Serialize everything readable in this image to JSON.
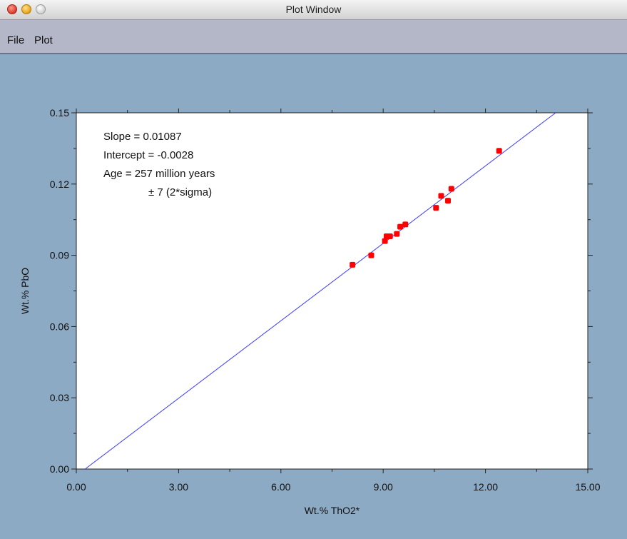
{
  "window": {
    "title": "Plot Window"
  },
  "menu": {
    "file_label": "File",
    "plot_label": "Plot"
  },
  "colors": {
    "background": "#8daac4",
    "plot_area": "#ffffff",
    "fit_line": "#3a3aff",
    "points": "#ff0000"
  },
  "chart_data": {
    "type": "scatter",
    "xlabel": "Wt.% ThO2*",
    "ylabel": "Wt.% PbO",
    "xlim": [
      0,
      15
    ],
    "ylim": [
      0,
      0.15
    ],
    "x_ticks": [
      "0.00",
      "3.00",
      "6.00",
      "9.00",
      "12.00",
      "15.00"
    ],
    "y_ticks": [
      "0.00",
      "0.03",
      "0.06",
      "0.09",
      "0.12",
      "0.15"
    ],
    "grid": false,
    "annotations": [
      "Slope = 0.01087",
      "Intercept = -0.0028",
      "Age = 257 million years",
      "± 7 (2*sigma)"
    ],
    "fit_line": {
      "slope": 0.01087,
      "intercept": -0.0028
    },
    "points": [
      {
        "x": 8.1,
        "y": 0.086
      },
      {
        "x": 8.65,
        "y": 0.09
      },
      {
        "x": 9.05,
        "y": 0.096
      },
      {
        "x": 9.1,
        "y": 0.098
      },
      {
        "x": 9.2,
        "y": 0.098
      },
      {
        "x": 9.4,
        "y": 0.099
      },
      {
        "x": 9.5,
        "y": 0.102
      },
      {
        "x": 9.65,
        "y": 0.103
      },
      {
        "x": 10.55,
        "y": 0.11
      },
      {
        "x": 10.7,
        "y": 0.115
      },
      {
        "x": 10.9,
        "y": 0.113
      },
      {
        "x": 11.0,
        "y": 0.118
      },
      {
        "x": 12.4,
        "y": 0.134
      }
    ]
  }
}
